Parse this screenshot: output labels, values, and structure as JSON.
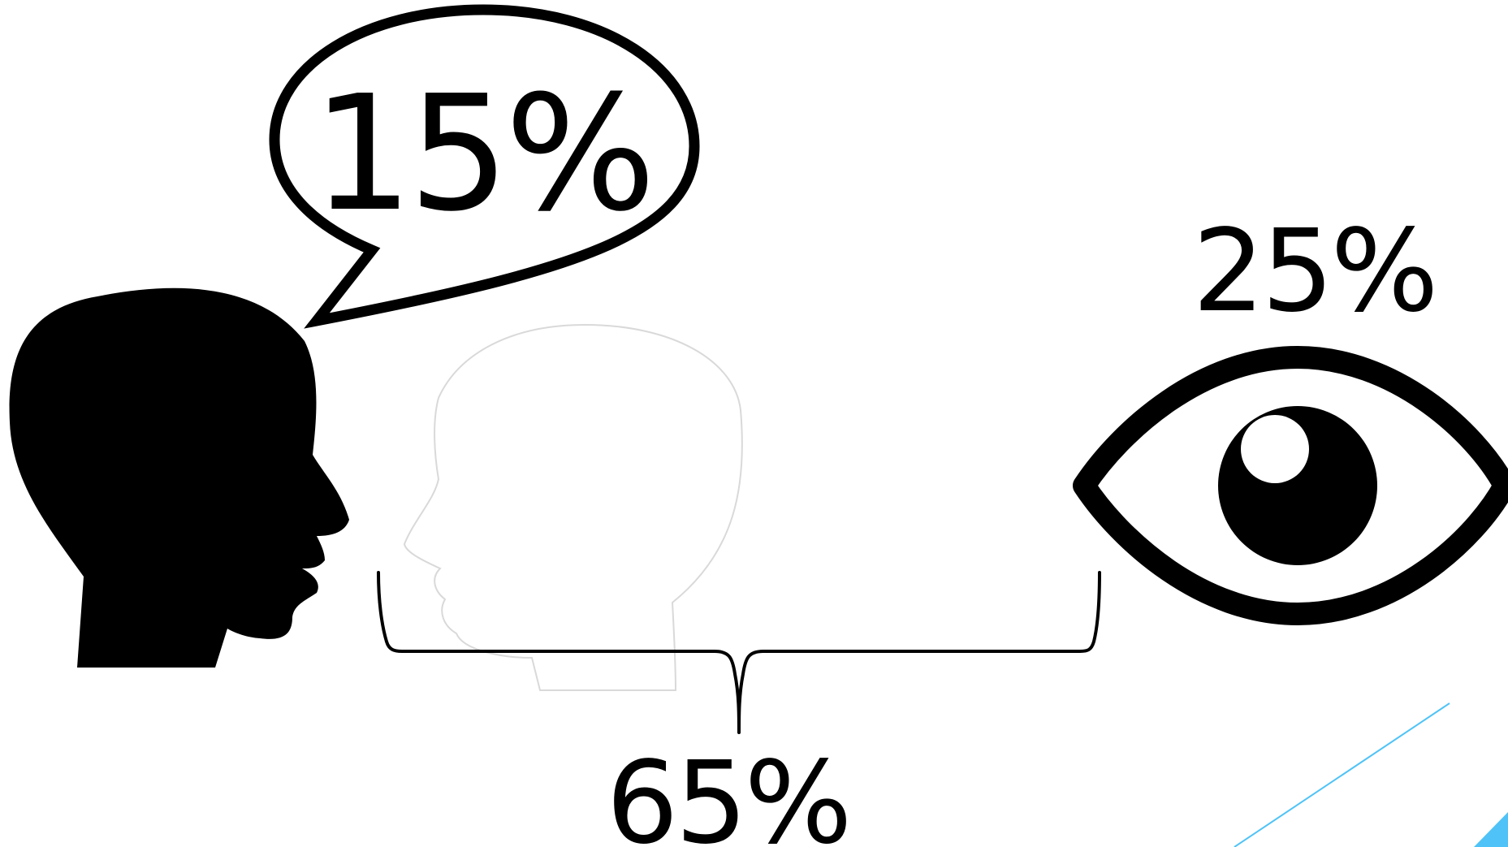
{
  "labels": {
    "speech": "15%",
    "sight": "25%",
    "listening": "65%"
  },
  "icons": {
    "speaker": "speaking-head-icon",
    "listener": "listening-head-outline-icon",
    "bubble": "speech-bubble-icon",
    "eye": "eye-icon",
    "brace": "curly-brace-icon"
  },
  "colors": {
    "ink": "#000000",
    "outline": "#d9d9d9",
    "accent": "#4fc3f7"
  }
}
